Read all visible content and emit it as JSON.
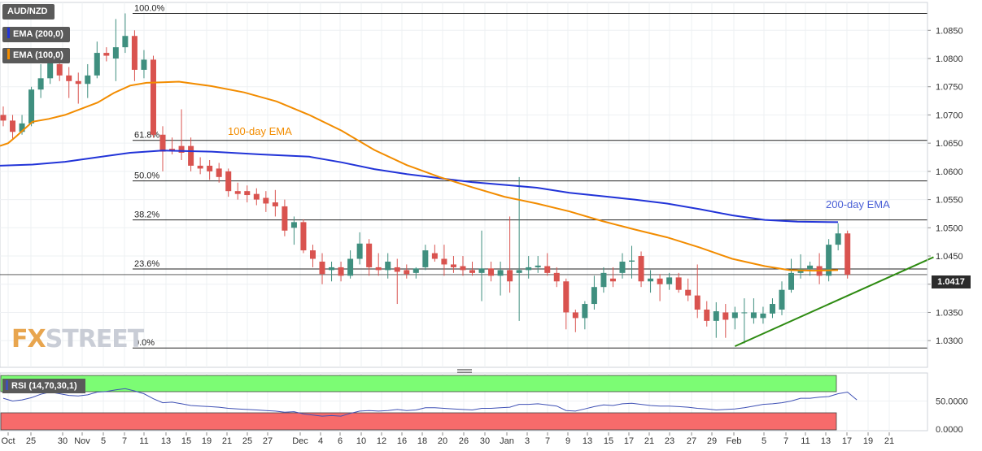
{
  "app": {
    "symbol": "AUD/NZD",
    "ema200_label": "EMA (200,0)",
    "ema100_label": "EMA (100,0)",
    "rsi_label": "RSI (14,70,30,1)",
    "last_price": "1.0417",
    "watermark_fx": "FX",
    "watermark_rest": "STREET"
  },
  "colors": {
    "bull": "#3f8f7f",
    "bear": "#d9534f",
    "ema200": "#2234d8",
    "ema100": "#f28c00",
    "trendline": "#2e8b12",
    "rsi_line": "#3f51b5",
    "rsi_overbought": "#7cfc74",
    "rsi_oversold": "#f76b6b"
  },
  "chart_data": {
    "type": "candlestick",
    "title": "AUD/NZD",
    "ylim": [
      1.027,
      1.0885
    ],
    "y_ticks": [
      "1.0850",
      "1.0800",
      "1.0750",
      "1.0700",
      "1.0650",
      "1.0600",
      "1.0550",
      "1.0500",
      "1.0450",
      "1.0400",
      "1.0350",
      "1.0300"
    ],
    "x_ticks": [
      "Oct",
      "25",
      "30",
      "Nov",
      "5",
      "7",
      "11",
      "13",
      "15",
      "19",
      "21",
      "25",
      "27",
      "Dec",
      "4",
      "6",
      "10",
      "12",
      "16",
      "18",
      "20",
      "26",
      "30",
      "Jan",
      "3",
      "7",
      "9",
      "13",
      "15",
      "17",
      "21",
      "23",
      "27",
      "29",
      "Feb",
      "5",
      "7",
      "11",
      "13",
      "17",
      "19",
      "21"
    ],
    "candles": [
      {
        "o": 1.07,
        "h": 1.0715,
        "l": 1.068,
        "c": 1.069
      },
      {
        "o": 1.069,
        "h": 1.07,
        "l": 1.0658,
        "c": 1.067
      },
      {
        "o": 1.067,
        "h": 1.07,
        "l": 1.0665,
        "c": 1.0685
      },
      {
        "o": 1.0685,
        "h": 1.075,
        "l": 1.068,
        "c": 1.0745
      },
      {
        "o": 1.0745,
        "h": 1.079,
        "l": 1.073,
        "c": 1.0765
      },
      {
        "o": 1.0765,
        "h": 1.08,
        "l": 1.0755,
        "c": 1.0795
      },
      {
        "o": 1.079,
        "h": 1.0805,
        "l": 1.076,
        "c": 1.077
      },
      {
        "o": 1.077,
        "h": 1.0785,
        "l": 1.073,
        "c": 1.076
      },
      {
        "o": 1.076,
        "h": 1.0775,
        "l": 1.072,
        "c": 1.0755
      },
      {
        "o": 1.0755,
        "h": 1.079,
        "l": 1.073,
        "c": 1.077
      },
      {
        "o": 1.077,
        "h": 1.083,
        "l": 1.0765,
        "c": 1.081
      },
      {
        "o": 1.081,
        "h": 1.082,
        "l": 1.0795,
        "c": 1.0805
      },
      {
        "o": 1.08,
        "h": 1.087,
        "l": 1.076,
        "c": 1.082
      },
      {
        "o": 1.082,
        "h": 1.088,
        "l": 1.081,
        "c": 1.084
      },
      {
        "o": 1.084,
        "h": 1.085,
        "l": 1.076,
        "c": 1.078
      },
      {
        "o": 1.078,
        "h": 1.0815,
        "l": 1.0765,
        "c": 1.0798
      },
      {
        "o": 1.0798,
        "h": 1.0805,
        "l": 1.066,
        "c": 1.0665
      },
      {
        "o": 1.0665,
        "h": 1.068,
        "l": 1.06,
        "c": 1.0635
      },
      {
        "o": 1.064,
        "h": 1.066,
        "l": 1.063,
        "c": 1.0638
      },
      {
        "o": 1.0645,
        "h": 1.071,
        "l": 1.062,
        "c": 1.0633
      },
      {
        "o": 1.0645,
        "h": 1.066,
        "l": 1.06,
        "c": 1.061
      },
      {
        "o": 1.061,
        "h": 1.0625,
        "l": 1.0595,
        "c": 1.0605
      },
      {
        "o": 1.061,
        "h": 1.062,
        "l": 1.0585,
        "c": 1.06
      },
      {
        "o": 1.0605,
        "h": 1.0615,
        "l": 1.058,
        "c": 1.059
      },
      {
        "o": 1.06,
        "h": 1.0605,
        "l": 1.0555,
        "c": 1.0565
      },
      {
        "o": 1.0565,
        "h": 1.058,
        "l": 1.055,
        "c": 1.056
      },
      {
        "o": 1.0565,
        "h": 1.0575,
        "l": 1.0545,
        "c": 1.0558
      },
      {
        "o": 1.056,
        "h": 1.057,
        "l": 1.054,
        "c": 1.055
      },
      {
        "o": 1.0553,
        "h": 1.0565,
        "l": 1.0528,
        "c": 1.0543
      },
      {
        "o": 1.0545,
        "h": 1.0567,
        "l": 1.052,
        "c": 1.0538
      },
      {
        "o": 1.0538,
        "h": 1.055,
        "l": 1.0485,
        "c": 1.0495
      },
      {
        "o": 1.05,
        "h": 1.052,
        "l": 1.047,
        "c": 1.051
      },
      {
        "o": 1.051,
        "h": 1.0515,
        "l": 1.0455,
        "c": 1.046
      },
      {
        "o": 1.046,
        "h": 1.047,
        "l": 1.043,
        "c": 1.0445
      },
      {
        "o": 1.044,
        "h": 1.0455,
        "l": 1.04,
        "c": 1.0418
      },
      {
        "o": 1.0425,
        "h": 1.044,
        "l": 1.0405,
        "c": 1.043
      },
      {
        "o": 1.043,
        "h": 1.044,
        "l": 1.0405,
        "c": 1.0415
      },
      {
        "o": 1.0415,
        "h": 1.046,
        "l": 1.041,
        "c": 1.0445
      },
      {
        "o": 1.0445,
        "h": 1.0492,
        "l": 1.0435,
        "c": 1.0472
      },
      {
        "o": 1.0472,
        "h": 1.048,
        "l": 1.0415,
        "c": 1.043
      },
      {
        "o": 1.043,
        "h": 1.0455,
        "l": 1.0415,
        "c": 1.0425
      },
      {
        "o": 1.0425,
        "h": 1.0455,
        "l": 1.041,
        "c": 1.044
      },
      {
        "o": 1.043,
        "h": 1.0445,
        "l": 1.0365,
        "c": 1.0422
      },
      {
        "o": 1.0425,
        "h": 1.0435,
        "l": 1.041,
        "c": 1.0418
      },
      {
        "o": 1.042,
        "h": 1.043,
        "l": 1.041,
        "c": 1.0428
      },
      {
        "o": 1.043,
        "h": 1.047,
        "l": 1.0425,
        "c": 1.046
      },
      {
        "o": 1.0455,
        "h": 1.047,
        "l": 1.044,
        "c": 1.0445
      },
      {
        "o": 1.0445,
        "h": 1.047,
        "l": 1.0415,
        "c": 1.0435
      },
      {
        "o": 1.0435,
        "h": 1.045,
        "l": 1.042,
        "c": 1.043
      },
      {
        "o": 1.0432,
        "h": 1.045,
        "l": 1.0415,
        "c": 1.0425
      },
      {
        "o": 1.0425,
        "h": 1.044,
        "l": 1.0415,
        "c": 1.042
      },
      {
        "o": 1.042,
        "h": 1.0495,
        "l": 1.037,
        "c": 1.0428
      },
      {
        "o": 1.0428,
        "h": 1.044,
        "l": 1.0405,
        "c": 1.0415
      },
      {
        "o": 1.0415,
        "h": 1.044,
        "l": 1.038,
        "c": 1.0425
      },
      {
        "o": 1.0425,
        "h": 1.052,
        "l": 1.0385,
        "c": 1.0405
      },
      {
        "o": 1.042,
        "h": 1.059,
        "l": 1.0335,
        "c": 1.0425
      },
      {
        "o": 1.0425,
        "h": 1.045,
        "l": 1.041,
        "c": 1.043
      },
      {
        "o": 1.043,
        "h": 1.045,
        "l": 1.042,
        "c": 1.0433
      },
      {
        "o": 1.0432,
        "h": 1.0455,
        "l": 1.0415,
        "c": 1.042
      },
      {
        "o": 1.042,
        "h": 1.043,
        "l": 1.0395,
        "c": 1.0405
      },
      {
        "o": 1.0405,
        "h": 1.041,
        "l": 1.032,
        "c": 1.035
      },
      {
        "o": 1.035,
        "h": 1.0355,
        "l": 1.0315,
        "c": 1.034
      },
      {
        "o": 1.034,
        "h": 1.037,
        "l": 1.032,
        "c": 1.0365
      },
      {
        "o": 1.0365,
        "h": 1.0415,
        "l": 1.0355,
        "c": 1.0395
      },
      {
        "o": 1.0395,
        "h": 1.043,
        "l": 1.0385,
        "c": 1.042
      },
      {
        "o": 1.041,
        "h": 1.043,
        "l": 1.0395,
        "c": 1.0405
      },
      {
        "o": 1.042,
        "h": 1.0455,
        "l": 1.041,
        "c": 1.044
      },
      {
        "o": 1.044,
        "h": 1.0468,
        "l": 1.041,
        "c": 1.0442
      },
      {
        "o": 1.045,
        "h": 1.0458,
        "l": 1.0395,
        "c": 1.0405
      },
      {
        "o": 1.0405,
        "h": 1.0425,
        "l": 1.0385,
        "c": 1.041
      },
      {
        "o": 1.041,
        "h": 1.0418,
        "l": 1.037,
        "c": 1.04
      },
      {
        "o": 1.04,
        "h": 1.042,
        "l": 1.039,
        "c": 1.0412
      },
      {
        "o": 1.0412,
        "h": 1.042,
        "l": 1.0385,
        "c": 1.039
      },
      {
        "o": 1.039,
        "h": 1.041,
        "l": 1.037,
        "c": 1.038
      },
      {
        "o": 1.038,
        "h": 1.0435,
        "l": 1.034,
        "c": 1.0355
      },
      {
        "o": 1.0355,
        "h": 1.037,
        "l": 1.0325,
        "c": 1.0335
      },
      {
        "o": 1.0335,
        "h": 1.0368,
        "l": 1.0305,
        "c": 1.0352
      },
      {
        "o": 1.035,
        "h": 1.0365,
        "l": 1.0305,
        "c": 1.0337
      },
      {
        "o": 1.034,
        "h": 1.036,
        "l": 1.032,
        "c": 1.035
      },
      {
        "o": 1.035,
        "h": 1.0375,
        "l": 1.0295,
        "c": 1.035
      },
      {
        "o": 1.034,
        "h": 1.0375,
        "l": 1.033,
        "c": 1.035
      },
      {
        "o": 1.034,
        "h": 1.036,
        "l": 1.033,
        "c": 1.0348
      },
      {
        "o": 1.0348,
        "h": 1.0375,
        "l": 1.034,
        "c": 1.0365
      },
      {
        "o": 1.0355,
        "h": 1.0405,
        "l": 1.0345,
        "c": 1.039
      },
      {
        "o": 1.039,
        "h": 1.0445,
        "l": 1.0385,
        "c": 1.042
      },
      {
        "o": 1.042,
        "h": 1.0453,
        "l": 1.041,
        "c": 1.0427
      },
      {
        "o": 1.0427,
        "h": 1.044,
        "l": 1.0415,
        "c": 1.0433
      },
      {
        "o": 1.0432,
        "h": 1.0455,
        "l": 1.04,
        "c": 1.0415
      },
      {
        "o": 1.0415,
        "h": 1.048,
        "l": 1.0405,
        "c": 1.047
      },
      {
        "o": 1.047,
        "h": 1.0508,
        "l": 1.046,
        "c": 1.049
      },
      {
        "o": 1.049,
        "h": 1.0495,
        "l": 1.041,
        "c": 1.0417
      }
    ],
    "ema100": [
      [
        0,
        1.0645
      ],
      [
        10,
        1.065
      ],
      [
        20,
        1.0662
      ],
      [
        30,
        1.0675
      ],
      [
        40,
        1.0688
      ],
      [
        60,
        1.0693
      ],
      [
        80,
        1.07
      ],
      [
        100,
        1.0711
      ],
      [
        120,
        1.0722
      ],
      [
        140,
        1.0739
      ],
      [
        160,
        1.0752
      ],
      [
        180,
        1.0757
      ],
      [
        200,
        1.0758
      ],
      [
        220,
        1.0759
      ],
      [
        260,
        1.0751
      ],
      [
        300,
        1.074
      ],
      [
        340,
        1.0724
      ],
      [
        380,
        1.07
      ],
      [
        420,
        1.0672
      ],
      [
        460,
        1.0638
      ],
      [
        500,
        1.0611
      ],
      [
        540,
        1.059
      ],
      [
        580,
        1.0572
      ],
      [
        620,
        1.0555
      ],
      [
        660,
        1.0543
      ],
      [
        700,
        1.0529
      ],
      [
        740,
        1.0512
      ],
      [
        780,
        1.0497
      ],
      [
        820,
        1.0483
      ],
      [
        860,
        1.0465
      ],
      [
        900,
        1.0445
      ],
      [
        940,
        1.0432
      ],
      [
        970,
        1.0425
      ],
      [
        1000,
        1.0424
      ],
      [
        1030,
        1.0425
      ]
    ],
    "ema200": [
      [
        0,
        1.061
      ],
      [
        40,
        1.0612
      ],
      [
        80,
        1.0617
      ],
      [
        120,
        1.0625
      ],
      [
        160,
        1.0633
      ],
      [
        200,
        1.0637
      ],
      [
        260,
        1.0635
      ],
      [
        320,
        1.063
      ],
      [
        380,
        1.0626
      ],
      [
        420,
        1.0616
      ],
      [
        460,
        1.0604
      ],
      [
        500,
        1.0595
      ],
      [
        540,
        1.0588
      ],
      [
        580,
        1.0581
      ],
      [
        620,
        1.0576
      ],
      [
        660,
        1.0571
      ],
      [
        700,
        1.0562
      ],
      [
        740,
        1.0556
      ],
      [
        780,
        1.055
      ],
      [
        820,
        1.0543
      ],
      [
        860,
        1.0533
      ],
      [
        900,
        1.0522
      ],
      [
        940,
        1.0514
      ],
      [
        980,
        1.0511
      ],
      [
        1030,
        1.051
      ]
    ],
    "fibonacci": [
      {
        "label": "100.0%",
        "price": 1.088
      },
      {
        "label": "61.8%",
        "price": 1.0655
      },
      {
        "label": "50.0%",
        "price": 1.0583
      },
      {
        "label": "38.2%",
        "price": 1.0514
      },
      {
        "label": "23.6%",
        "price": 1.0427
      },
      {
        "label": "0.0%",
        "price": 1.0287
      }
    ],
    "annotations": [
      {
        "text": "100-day EMA",
        "anchor_index": 30
      },
      {
        "text": "200-day EMA",
        "anchor_index": 89
      }
    ],
    "trendline": {
      "from": {
        "index": 78,
        "price": 1.029
      },
      "to": {
        "index": 99,
        "price": 1.0448
      }
    },
    "current_price": 1.0417,
    "rsi": {
      "ylim": [
        0,
        100
      ],
      "y_ticks": [
        "50.0000",
        "0.0000"
      ],
      "overbought": 70,
      "oversold": 30,
      "values": [
        55,
        50,
        52,
        56,
        62,
        66,
        63,
        60,
        59,
        61,
        66,
        67,
        70,
        72,
        68,
        63,
        54,
        47,
        48,
        45,
        42,
        41,
        40,
        39,
        37,
        36,
        35,
        34,
        33,
        32,
        30,
        31,
        27,
        25,
        23,
        24,
        23,
        28,
        32,
        33,
        32,
        33,
        35,
        33,
        34,
        38,
        38,
        37,
        36,
        35,
        34,
        37,
        37,
        38,
        39,
        44,
        44,
        45,
        43,
        41,
        33,
        32,
        36,
        40,
        43,
        42,
        45,
        46,
        44,
        42,
        41,
        41,
        40,
        39,
        37,
        36,
        34,
        35,
        36,
        38,
        41,
        44,
        45,
        47,
        50,
        55,
        55,
        57,
        58,
        63,
        66,
        52
      ]
    }
  }
}
